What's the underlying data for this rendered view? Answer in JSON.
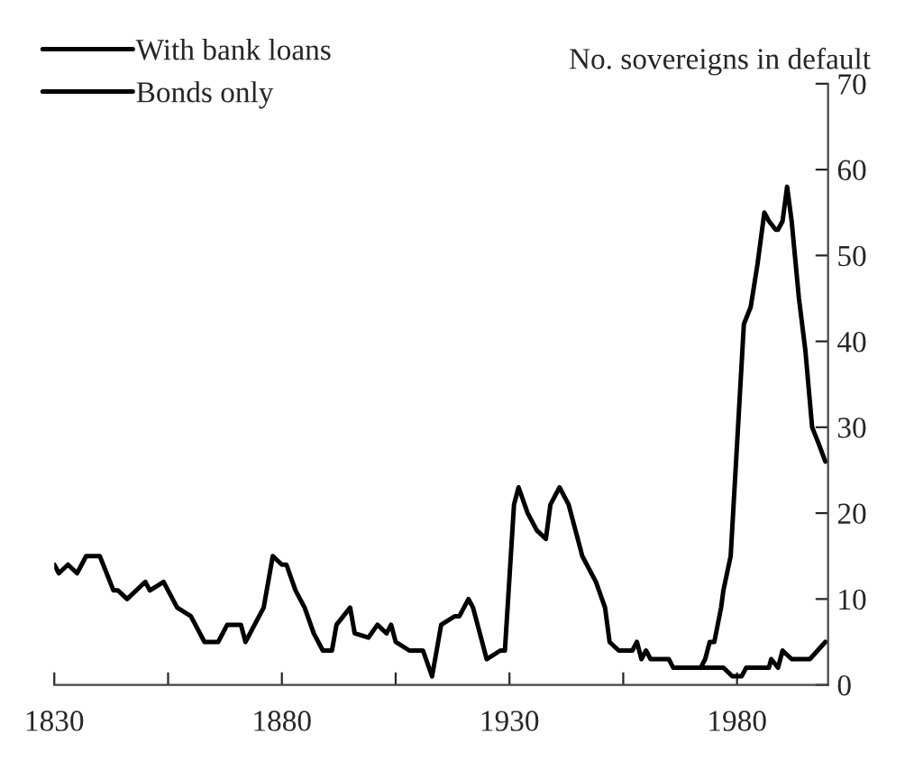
{
  "chart_data": {
    "type": "line",
    "ylabel": "No. sovereigns in default",
    "xlim": [
      1830,
      2000
    ],
    "xticks": [
      1830,
      {
        "value": 1855,
        "label": null
      },
      1880,
      {
        "value": 1905,
        "label": null
      },
      1930,
      {
        "value": 1955,
        "label": null
      },
      1980
    ],
    "ylim": [
      0,
      70
    ],
    "yticks": [
      0,
      10,
      20,
      30,
      40,
      50,
      60,
      70
    ],
    "legend": "top left",
    "grid": false,
    "line_style": "solid",
    "series": [
      {
        "name": "With bank loans",
        "color": "#000000",
        "x": [
          1972,
          1973,
          1974,
          1975,
          1976.5,
          1977,
          1978.6,
          1980,
          1981.5,
          1983,
          1984.5,
          1986,
          1987,
          1988.5,
          1989,
          1990,
          1991,
          1992,
          1993.6,
          1995,
          1996.5,
          1998,
          1999.4
        ],
        "values": [
          2,
          3,
          5,
          5,
          9,
          11,
          15,
          28,
          42,
          44,
          49,
          55,
          54,
          53,
          53,
          54,
          58,
          54,
          45,
          39,
          30,
          28,
          26
        ]
      },
      {
        "name": "Bonds only",
        "color": "#000000",
        "x": [
          1830,
          1831,
          1833,
          1835,
          1837,
          1840,
          1843,
          1844,
          1846,
          1850,
          1851,
          1854,
          1857,
          1860,
          1863,
          1866,
          1868,
          1871,
          1872,
          1876,
          1878,
          1880,
          1881,
          1883,
          1885,
          1887,
          1889,
          1891,
          1892,
          1895,
          1896,
          1899,
          1901,
          1903,
          1904,
          1905,
          1908,
          1911,
          1913,
          1915,
          1918,
          1919,
          1921,
          1922,
          1925,
          1928,
          1929,
          1931,
          1932,
          1934,
          1936,
          1938,
          1939,
          1941,
          1943,
          1944,
          1946,
          1949,
          1951,
          1952,
          1954,
          1957,
          1958,
          1959,
          1960,
          1961,
          1965,
          1966,
          1972,
          1977,
          1979,
          1981,
          1982,
          1987,
          1987.5,
          1989,
          1990,
          1992,
          1996,
          1999.4
        ],
        "values": [
          14,
          13,
          14,
          13,
          15,
          15,
          11,
          11,
          10,
          12,
          11,
          12,
          9,
          8,
          5,
          5,
          7,
          7,
          5,
          9,
          15,
          14,
          14,
          11,
          9,
          6,
          4,
          4,
          7,
          9,
          6,
          5.5,
          7,
          6,
          7,
          5,
          4,
          4,
          1,
          7,
          8,
          8,
          10,
          9,
          3,
          4,
          4,
          21,
          23,
          20,
          18,
          17,
          21,
          23,
          21,
          19,
          15,
          12,
          9,
          5,
          4,
          4,
          5,
          3,
          4,
          3,
          3,
          2,
          2,
          2,
          1,
          1,
          2,
          2,
          3,
          2,
          4,
          3,
          3,
          5
        ]
      }
    ]
  }
}
